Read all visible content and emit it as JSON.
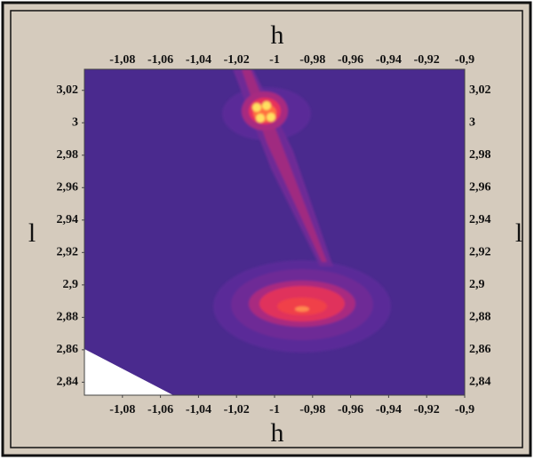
{
  "chart_data": {
    "type": "heatmap",
    "xlabel": "h",
    "ylabel": "l",
    "xlim": [
      -1.1,
      -0.9
    ],
    "xticks": [
      {
        "value": -1.08,
        "label": "-1,08"
      },
      {
        "value": -1.06,
        "label": "-1,06"
      },
      {
        "value": -1.04,
        "label": "-1,04"
      },
      {
        "value": -1.02,
        "label": "-1,02"
      },
      -1,
      {
        "value": -0.98,
        "label": "-0,98"
      },
      {
        "value": -0.96,
        "label": "-0,96"
      },
      {
        "value": -0.94,
        "label": "-0,94"
      },
      {
        "value": -0.92,
        "label": "-0,92"
      },
      {
        "value": -0.9,
        "label": "-0,9"
      }
    ],
    "ylim": [
      2.832,
      3.033
    ],
    "yticks": [
      {
        "value": 3.02,
        "label": "3,02"
      },
      3,
      {
        "value": 2.98,
        "label": "2,98"
      },
      {
        "value": 2.96,
        "label": "2,96"
      },
      {
        "value": 2.94,
        "label": "2,94"
      },
      {
        "value": 2.92,
        "label": "2,92"
      },
      {
        "value": 2.9,
        "label": "2,9"
      },
      {
        "value": 2.88,
        "label": "2,88"
      },
      {
        "value": 2.86,
        "label": "2,86"
      },
      {
        "value": 2.84,
        "label": "2,84"
      }
    ]
  }
}
